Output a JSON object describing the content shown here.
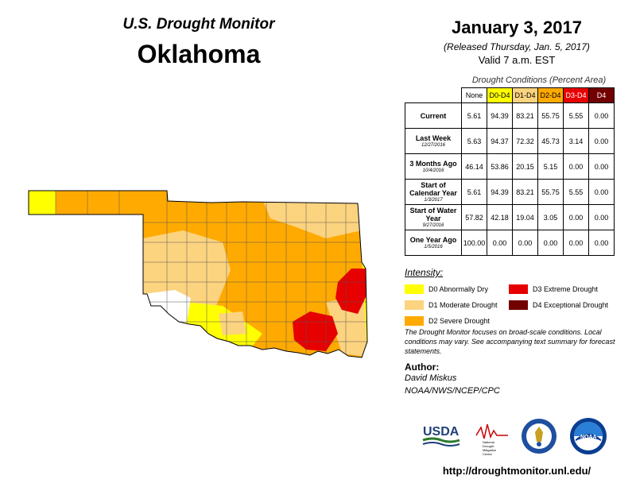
{
  "header": {
    "title": "U.S. Drought Monitor",
    "state": "Oklahoma"
  },
  "map_info": {
    "date": "January 3, 2017",
    "released": "(Released Thursday, Jan. 5, 2017)",
    "valid": "Valid 7 a.m. EST"
  },
  "table": {
    "caption": "Drought Conditions (Percent Area)",
    "columns": [
      "None",
      "D0-D4",
      "D1-D4",
      "D2-D4",
      "D3-D4",
      "D4"
    ],
    "column_colors": [
      "#ffffff",
      "#ffff00",
      "#fcd37f",
      "#ffaa00",
      "#e60000",
      "#730000"
    ],
    "column_text_colors": [
      "#000000",
      "#000000",
      "#000000",
      "#000000",
      "#ffffff",
      "#ffffff"
    ],
    "rows": [
      {
        "label": "Current",
        "sub": "",
        "values": [
          "5.61",
          "94.39",
          "83.21",
          "55.75",
          "5.55",
          "0.00"
        ]
      },
      {
        "label": "Last Week",
        "sub": "12/27/2016",
        "values": [
          "5.63",
          "94.37",
          "72.32",
          "45.73",
          "3.14",
          "0.00"
        ]
      },
      {
        "label": "3 Months Ago",
        "sub": "10/4/2016",
        "values": [
          "46.14",
          "53.86",
          "20.15",
          "5.15",
          "0.00",
          "0.00"
        ]
      },
      {
        "label": "Start of Calendar Year",
        "sub": "1/3/2017",
        "values": [
          "5.61",
          "94.39",
          "83.21",
          "55.75",
          "5.55",
          "0.00"
        ]
      },
      {
        "label": "Start of Water Year",
        "sub": "9/27/2016",
        "values": [
          "57.82",
          "42.18",
          "19.04",
          "3.05",
          "0.00",
          "0.00"
        ]
      },
      {
        "label": "One Year Ago",
        "sub": "1/5/2016",
        "values": [
          "100.00",
          "0.00",
          "0.00",
          "0.00",
          "0.00",
          "0.00"
        ]
      }
    ]
  },
  "legend": {
    "title": "Intensity:",
    "items": [
      {
        "label": "D0 Abnormally Dry",
        "color": "#ffff00"
      },
      {
        "label": "D1 Moderate Drought",
        "color": "#fcd37f"
      },
      {
        "label": "D2 Severe Drought",
        "color": "#ffaa00"
      },
      {
        "label": "D3 Extreme Drought",
        "color": "#e60000"
      },
      {
        "label": "D4 Exceptional Drought",
        "color": "#730000"
      }
    ]
  },
  "note": "The Drought Monitor focuses on broad-scale conditions. Local conditions may vary. See accompanying text summary for forecast statements.",
  "author": {
    "label": "Author:",
    "name": "David Miskus",
    "org": "NOAA/NWS/NCEP/CPC"
  },
  "logos": [
    {
      "name": "usda-logo",
      "text": "USDA"
    },
    {
      "name": "ndmc-logo",
      "text": "National Drought Mitigation Center"
    },
    {
      "name": "commerce-seal-logo",
      "text": ""
    },
    {
      "name": "noaa-logo",
      "text": "NOAA"
    }
  ],
  "url": "http://droughtmonitor.unl.edu/"
}
